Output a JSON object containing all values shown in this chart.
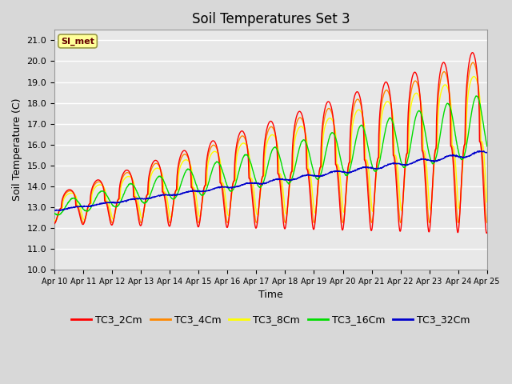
{
  "title": "Soil Temperatures Set 3",
  "xlabel": "Time",
  "ylabel": "Soil Temperature (C)",
  "annotation": "SI_met",
  "ylim": [
    10.0,
    21.5
  ],
  "yticks": [
    10.0,
    11.0,
    12.0,
    13.0,
    14.0,
    15.0,
    16.0,
    17.0,
    18.0,
    19.0,
    20.0,
    21.0
  ],
  "xlim": [
    0,
    15
  ],
  "xtick_labels": [
    "Apr 10",
    "Apr 11",
    "Apr 12",
    "Apr 13",
    "Apr 14",
    "Apr 15",
    "Apr 16",
    "Apr 17",
    "Apr 18",
    "Apr 19",
    "Apr 20",
    "Apr 21",
    "Apr 22",
    "Apr 23",
    "Apr 24",
    "Apr 25"
  ],
  "series_colors": [
    "#ff0000",
    "#ff8800",
    "#ffff00",
    "#00dd00",
    "#0000cc"
  ],
  "series_labels": [
    "TC3_2Cm",
    "TC3_4Cm",
    "TC3_8Cm",
    "TC3_16Cm",
    "TC3_32Cm"
  ],
  "plot_bg_color": "#e8e8e8",
  "fig_bg_color": "#d8d8d8",
  "grid_color": "#ffffff",
  "title_fontsize": 12,
  "axis_fontsize": 9,
  "tick_fontsize": 8,
  "legend_fontsize": 9
}
